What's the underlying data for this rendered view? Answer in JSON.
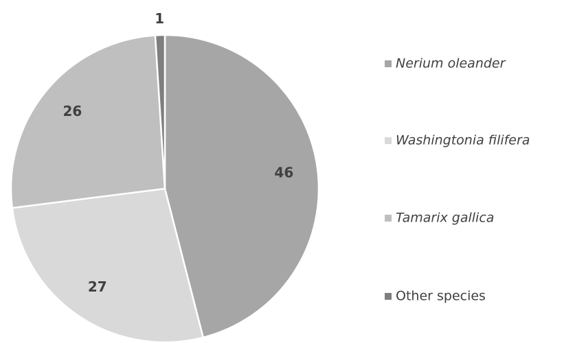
{
  "chart_data": {
    "type": "pie",
    "categories": [
      "Nerium oleander",
      "Washingtonia filifera",
      "Tamarix gallica",
      "Other species"
    ],
    "values": [
      46,
      27,
      26,
      1
    ],
    "colors": [
      "#a6a6a6",
      "#d9d9d9",
      "#bfbfbf",
      "#7f7f7f"
    ],
    "legend": "right"
  }
}
